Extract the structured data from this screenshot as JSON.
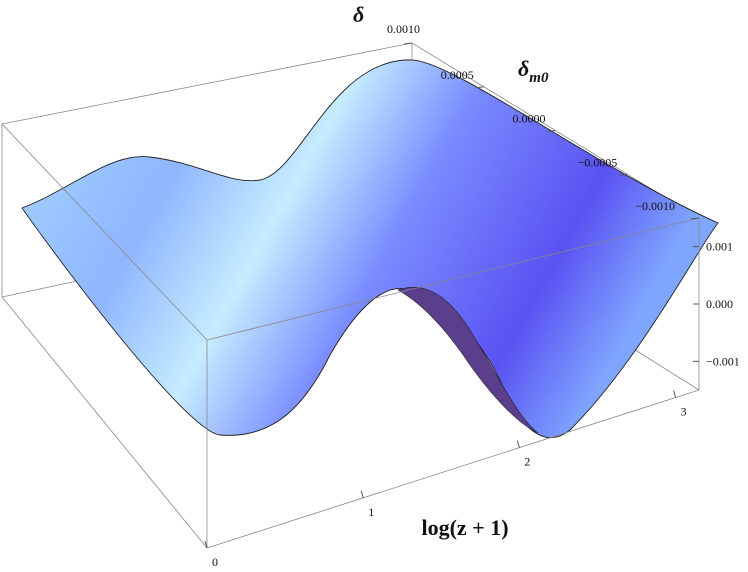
{
  "chart_data": {
    "type": "surface3d",
    "title": "",
    "axes": {
      "x": {
        "label": "log(z + 1)",
        "ticks": [
          "0",
          "1",
          "2",
          "3"
        ],
        "range": [
          0,
          3.15
        ]
      },
      "y": {
        "label_main": "δ",
        "label_sub": "m0",
        "ticks": [
          "0.0010",
          "0.0005",
          "0.0000",
          "−0.0005",
          "−0.0010"
        ],
        "range": [
          -0.001,
          0.001
        ]
      },
      "z": {
        "label": "δ",
        "ticks": [
          "0.001",
          "0.000",
          "−0.001"
        ],
        "range": [
          -0.0015,
          0.0015
        ]
      }
    },
    "surface_profile": {
      "description_free": true,
      "x": [
        0,
        0.3,
        0.6,
        0.9,
        1.2,
        1.5,
        1.8,
        2.1,
        2.4,
        2.7,
        3.0
      ],
      "delta_per_unit_delta_m0": [
        1.0,
        0.7,
        -0.1,
        -0.55,
        0.1,
        1.0,
        0.2,
        -0.6,
        -0.1,
        0.6,
        1.0
      ]
    },
    "colors": {
      "surface_light": "#bfe4ff",
      "surface_mid": "#8fb0ff",
      "surface_deep": "#5a4df0",
      "underside": "#5b3f8c",
      "box": "#777777"
    }
  }
}
